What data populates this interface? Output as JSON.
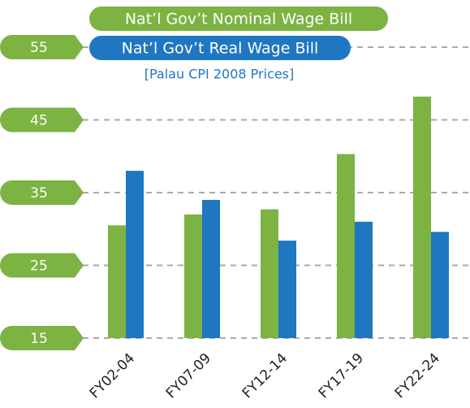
{
  "chart_data": {
    "type": "bar",
    "subtitle": "[Palau CPI 2008 Prices]",
    "categories": [
      "FY02-04",
      "FY07-09",
      "FY12-14",
      "FY17-19",
      "FY22-24"
    ],
    "series": [
      {
        "name": "Nat’l Gov’t Nominal Wage Bill",
        "color": "#7cb342",
        "values": [
          30.5,
          32.0,
          32.7,
          40.3,
          48.2
        ]
      },
      {
        "name": "Nat’l Gov’t Real Wage Bill",
        "color": "#1f77c2",
        "values": [
          38.0,
          34.0,
          28.4,
          31.0,
          29.6
        ]
      }
    ],
    "ylim": [
      15,
      55
    ],
    "yticks": [
      15,
      25,
      35,
      45,
      55
    ],
    "grid": true
  }
}
